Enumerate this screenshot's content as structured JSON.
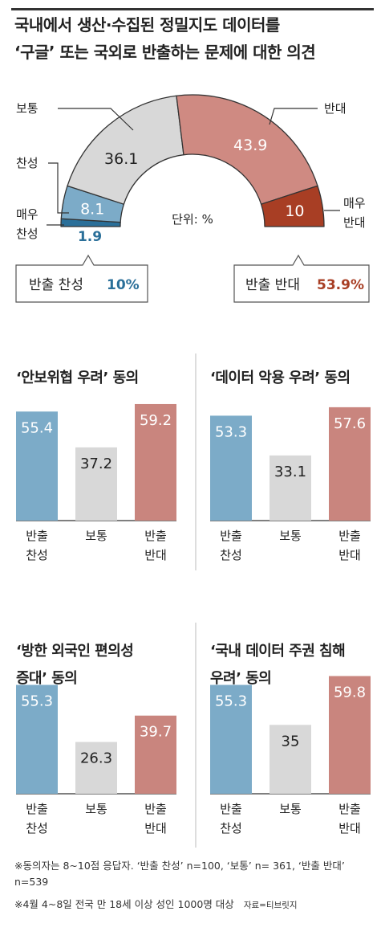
{
  "title_lines": [
    "국내에서 생산·수집된 정밀지도 데이터를",
    "‘구글’ 또는 국외로 반출하는 문제에 대한 의견"
  ],
  "chart_data": [
    {
      "type": "pie",
      "subtype": "half-donut",
      "unit_label": "단위: %",
      "slices": [
        {
          "label": "매우 찬성",
          "value": 1.9,
          "color": "#2a6f99"
        },
        {
          "label": "찬성",
          "value": 8.1,
          "color": "#7cabc8"
        },
        {
          "label": "보통",
          "value": 36.1,
          "color": "#d8d8d8"
        },
        {
          "label": "반대",
          "value": 43.9,
          "color": "#cf8a82"
        },
        {
          "label": "매우 반대",
          "value": 10,
          "color": "#a83e24"
        }
      ],
      "value_labels": [
        "1.9",
        "8.1",
        "36.1",
        "43.9",
        "10"
      ],
      "side_labels": {
        "very_agree": [
          "매우",
          "찬성"
        ],
        "agree": "찬성",
        "neutral": "보통",
        "oppose": "반대",
        "very_oppose": [
          "매우",
          "반대"
        ]
      },
      "summary_agree": {
        "label": "반출 찬성",
        "value": "10%"
      },
      "summary_oppose": {
        "label": "반출 반대",
        "value": "53.9%"
      }
    },
    {
      "type": "bar",
      "title": "‘안보위협 우려’ 동의",
      "categories": [
        [
          "반출",
          "찬성"
        ],
        [
          "보통"
        ],
        [
          "반출",
          "반대"
        ]
      ],
      "values": [
        55.4,
        37.2,
        59.2
      ],
      "value_labels": [
        "55.4",
        "37.2",
        "59.2"
      ]
    },
    {
      "type": "bar",
      "title": "‘데이터 악용 우려’ 동의",
      "categories": [
        [
          "반출",
          "찬성"
        ],
        [
          "보통"
        ],
        [
          "반출",
          "반대"
        ]
      ],
      "values": [
        53.3,
        33.1,
        57.6
      ],
      "value_labels": [
        "53.3",
        "33.1",
        "57.6"
      ]
    },
    {
      "type": "bar",
      "title_lines": [
        "‘방한 외국인 편의성",
        "증대’ 동의"
      ],
      "categories": [
        [
          "반출",
          "찬성"
        ],
        [
          "보통"
        ],
        [
          "반출",
          "반대"
        ]
      ],
      "values": [
        55.3,
        26.3,
        39.7
      ],
      "value_labels": [
        "55.3",
        "26.3",
        "39.7"
      ]
    },
    {
      "type": "bar",
      "title_lines": [
        "‘국내 데이터 주권 침해",
        "우려’ 동의"
      ],
      "categories": [
        [
          "반출",
          "찬성"
        ],
        [
          "보통"
        ],
        [
          "반출",
          "반대"
        ]
      ],
      "values": [
        55.3,
        35,
        59.8
      ],
      "value_labels": [
        "55.3",
        "35",
        "59.8"
      ]
    }
  ],
  "bar_colors": [
    "#7cabc8",
    "#d8d8d8",
    "#c9857e"
  ],
  "footnotes": [
    "※동의자는 8~10점 응답자. ‘반출 찬성’ n=100, ‘보통’ n= 361, ‘반출 반대’ n=539",
    "※4월 4~8일 전국 만 18세 이상 성인 1000명 대상"
  ],
  "source": "자료=티브릿지"
}
